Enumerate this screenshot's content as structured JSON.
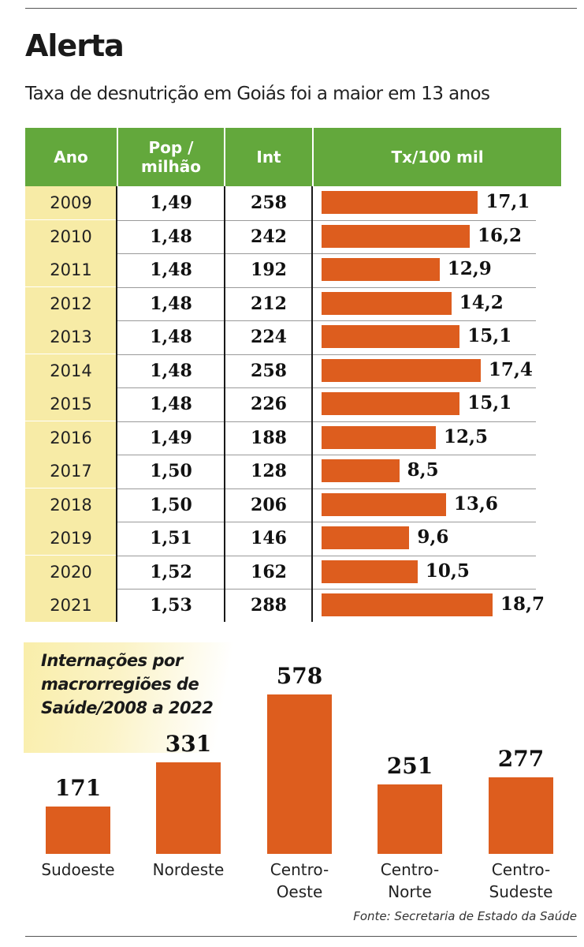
{
  "header": {
    "title": "Alerta",
    "subtitle": "Taxa de desnutrição em Goiás foi a maior em 13 anos"
  },
  "table": {
    "columns": [
      "Ano",
      "Pop /\nmilhão",
      "Int",
      "Tx/100 mil"
    ]
  },
  "regions_callout": "Internações por macrorregiões de Saúde/2008 a 2022",
  "source": "Fonte: Secretaria de Estado da Saúde",
  "colors": {
    "header_green": "#63a83c",
    "bar_orange": "#dd5d1e",
    "year_cell": "#f7eba6"
  },
  "chart_data": [
    {
      "type": "table",
      "title": "Taxa de desnutrição em Goiás foi a maior em 13 anos",
      "columns": [
        "Ano",
        "Pop / milhão",
        "Int",
        "Tx/100 mil"
      ],
      "rows": [
        {
          "year": "2009",
          "pop": "1,49",
          "int": "258",
          "rate": 17.1,
          "rate_label": "17,1"
        },
        {
          "year": "2010",
          "pop": "1,48",
          "int": "242",
          "rate": 16.2,
          "rate_label": "16,2"
        },
        {
          "year": "2011",
          "pop": "1,48",
          "int": "192",
          "rate": 12.9,
          "rate_label": "12,9"
        },
        {
          "year": "2012",
          "pop": "1,48",
          "int": "212",
          "rate": 14.2,
          "rate_label": "14,2"
        },
        {
          "year": "2013",
          "pop": "1,48",
          "int": "224",
          "rate": 15.1,
          "rate_label": "15,1"
        },
        {
          "year": "2014",
          "pop": "1,48",
          "int": "258",
          "rate": 17.4,
          "rate_label": "17,4"
        },
        {
          "year": "2015",
          "pop": "1,48",
          "int": "226",
          "rate": 15.1,
          "rate_label": "15,1"
        },
        {
          "year": "2016",
          "pop": "1,49",
          "int": "188",
          "rate": 12.5,
          "rate_label": "12,5"
        },
        {
          "year": "2017",
          "pop": "1,50",
          "int": "128",
          "rate": 8.5,
          "rate_label": "8,5"
        },
        {
          "year": "2018",
          "pop": "1,50",
          "int": "206",
          "rate": 13.6,
          "rate_label": "13,6"
        },
        {
          "year": "2019",
          "pop": "1,51",
          "int": "146",
          "rate": 9.6,
          "rate_label": "9,6"
        },
        {
          "year": "2020",
          "pop": "1,52",
          "int": "162",
          "rate": 10.5,
          "rate_label": "10,5"
        },
        {
          "year": "2021",
          "pop": "1,53",
          "int": "288",
          "rate": 18.7,
          "rate_label": "18,7"
        }
      ]
    },
    {
      "type": "bar",
      "title": "Internações por macrorregiões de Saúde/2008 a 2022",
      "categories": [
        "Sudoeste",
        "Nordeste",
        "Centro-\nOeste",
        "Centro-\nNorte",
        "Centro-\nSudeste"
      ],
      "values": [
        171,
        331,
        578,
        251,
        277
      ],
      "value_labels": [
        "171",
        "331",
        "578",
        "251",
        "277"
      ],
      "xlabel": "",
      "ylabel": "",
      "grid": false
    }
  ]
}
